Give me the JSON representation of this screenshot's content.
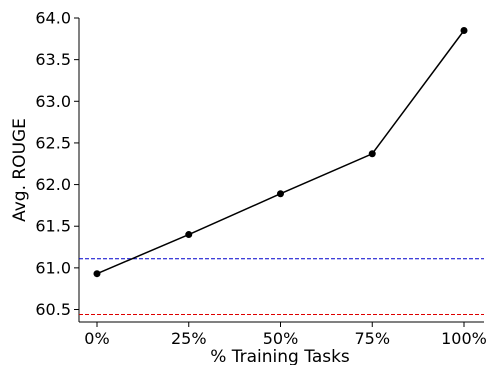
{
  "chart_data": {
    "type": "line",
    "title": "",
    "xlabel": "% Training Tasks",
    "ylabel": "Avg. ROUGE",
    "categories": [
      "0%",
      "25%",
      "50%",
      "75%",
      "100%"
    ],
    "series": [
      {
        "values": [
          60.93,
          61.4,
          61.89,
          62.37,
          63.85
        ],
        "color": "#000000"
      }
    ],
    "reference_lines": [
      {
        "value": 61.11,
        "color": "#0000cc",
        "style": "dashed"
      },
      {
        "value": 60.44,
        "color": "#dd0000",
        "style": "dashed"
      }
    ],
    "ylim": [
      60.35,
      64.0
    ],
    "yticks": [
      "60.5",
      "61.0",
      "61.5",
      "62.0",
      "62.5",
      "63.0",
      "63.5",
      "64.0"
    ],
    "grid": false,
    "legend": "none"
  }
}
